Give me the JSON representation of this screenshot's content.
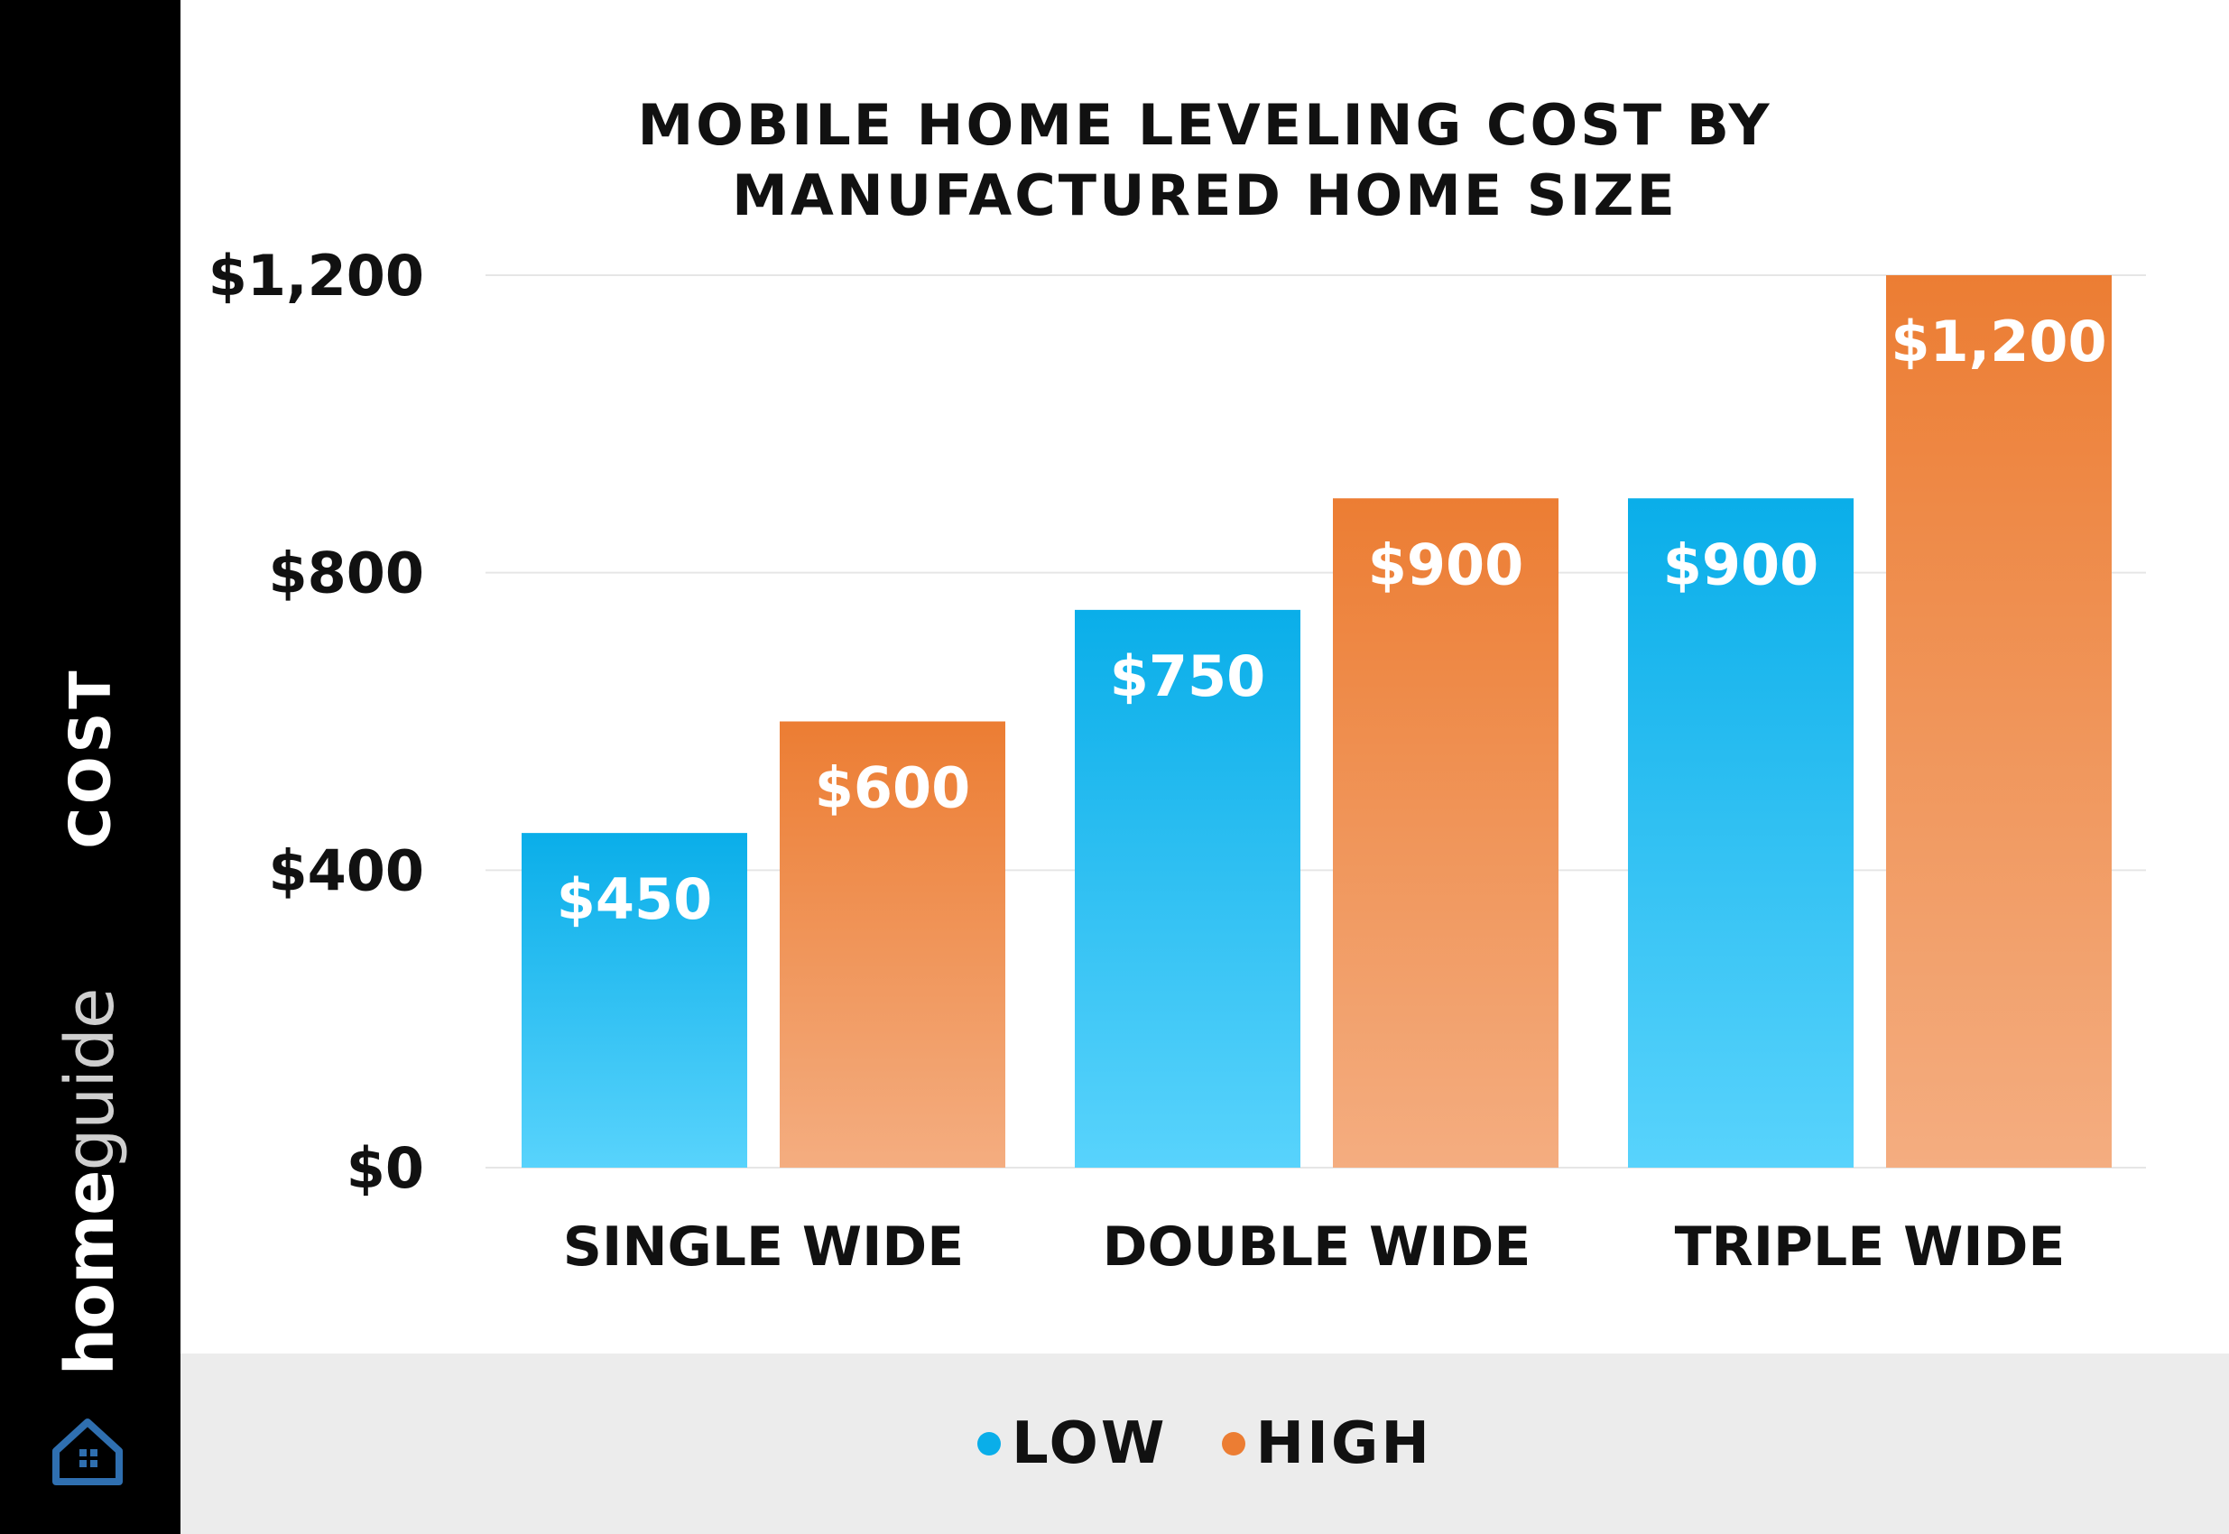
{
  "sidebar": {
    "axis_label": "COST",
    "brand_strong": "home",
    "brand_light": "guide",
    "logo_icon": "house-icon"
  },
  "colors": {
    "low_top": "#0aaee9",
    "low_bottom": "#58d3fc",
    "high_top": "#ec7d33",
    "high_bottom": "#f4ad80",
    "grid": "#e6e6e6",
    "text": "#111111"
  },
  "chart_data": {
    "type": "bar",
    "title": [
      "MOBILE HOME LEVELING COST BY",
      "MANUFACTURED HOME SIZE"
    ],
    "categories": [
      "SINGLE WIDE",
      "DOUBLE WIDE",
      "TRIPLE WIDE"
    ],
    "series": [
      {
        "name": "LOW",
        "values": [
          450,
          750,
          900
        ],
        "labels": [
          "$450",
          "$750",
          "$900"
        ]
      },
      {
        "name": "HIGH",
        "values": [
          600,
          900,
          1200
        ],
        "labels": [
          "$600",
          "$900",
          "$1,200"
        ]
      }
    ],
    "ylabel": "COST",
    "ylim": [
      0,
      1200
    ],
    "yticks": [
      0,
      400,
      800,
      1200
    ],
    "ytick_labels": [
      "$0",
      "$400",
      "$800",
      "$1,200"
    ],
    "grid": true,
    "legend_position": "bottom"
  }
}
